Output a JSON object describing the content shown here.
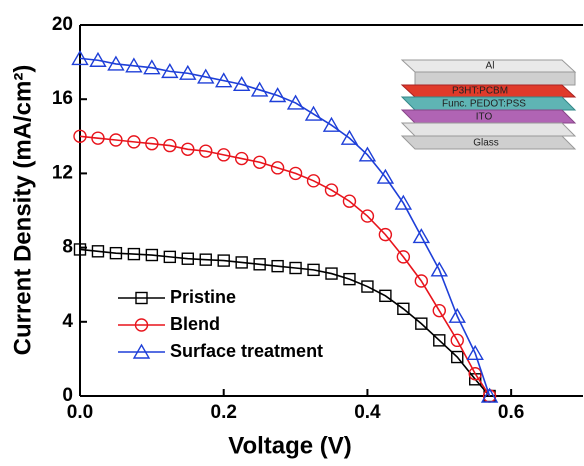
{
  "chart_data": {
    "type": "line",
    "x_label": "Voltage (V)",
    "y_label": "Current Density (mA/cm²)",
    "x": [
      0,
      0.025,
      0.05,
      0.075,
      0.1,
      0.125,
      0.15,
      0.175,
      0.2,
      0.225,
      0.25,
      0.275,
      0.3,
      0.325,
      0.35,
      0.375,
      0.4,
      0.425,
      0.45,
      0.475,
      0.5,
      0.525,
      0.55,
      0.57
    ],
    "series": [
      {
        "name": "Pristine",
        "color": "#000000",
        "marker": "square",
        "values": [
          7.9,
          7.8,
          7.7,
          7.65,
          7.6,
          7.5,
          7.4,
          7.35,
          7.3,
          7.2,
          7.1,
          7.0,
          6.9,
          6.8,
          6.6,
          6.3,
          5.9,
          5.4,
          4.7,
          3.9,
          3.0,
          2.1,
          0.9,
          0
        ]
      },
      {
        "name": "Blend",
        "color": "#e8141c",
        "marker": "circle",
        "values": [
          14.0,
          13.9,
          13.8,
          13.7,
          13.6,
          13.5,
          13.3,
          13.2,
          13.0,
          12.8,
          12.6,
          12.3,
          12.0,
          11.6,
          11.1,
          10.5,
          9.7,
          8.7,
          7.5,
          6.2,
          4.6,
          3.0,
          1.2,
          0
        ]
      },
      {
        "name": "Surface treatment",
        "color": "#1e3fd8",
        "marker": "triangle",
        "values": [
          18.2,
          18.1,
          17.9,
          17.8,
          17.7,
          17.5,
          17.4,
          17.2,
          17.0,
          16.8,
          16.5,
          16.2,
          15.8,
          15.2,
          14.6,
          13.9,
          13.0,
          11.8,
          10.4,
          8.6,
          6.8,
          4.3,
          2.3,
          0
        ]
      }
    ],
    "xlim": [
      0,
      0.7
    ],
    "ylim": [
      0,
      20
    ],
    "xticks": [
      {
        "value": 0,
        "label": "0.0"
      },
      0.2,
      0.4,
      0.6
    ],
    "yticks": [
      0,
      4,
      8,
      12,
      16,
      20
    ],
    "legend": "lower left",
    "inset_layers": [
      "Al",
      "P3HT:PCBM",
      "Func. PEDOT:PSS",
      "ITO",
      "Glass"
    ]
  }
}
